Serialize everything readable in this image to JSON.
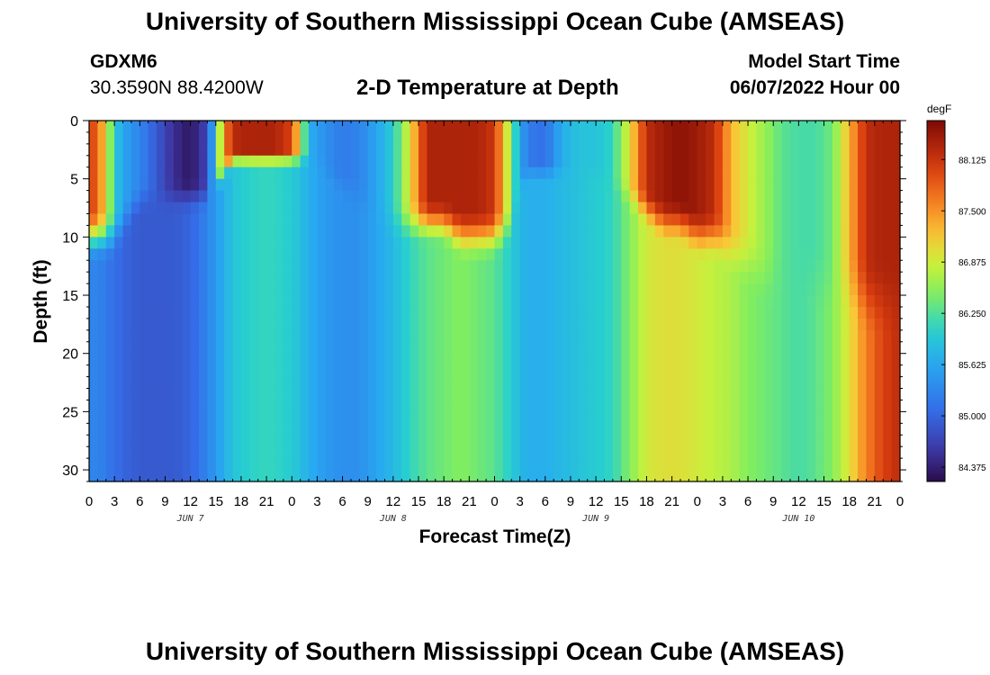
{
  "header": {
    "title": "University of Southern Mississippi Ocean Cube (AMSEAS)",
    "station_id": "GDXM6",
    "station_coords": "30.3590N  88.4200W",
    "subtitle": "2-D Temperature at Depth",
    "model_start_label": "Model Start Time",
    "model_start_value": "06/07/2022 Hour 00"
  },
  "footer": {
    "title": "University of Southern Mississippi Ocean Cube (AMSEAS)"
  },
  "chart_data": {
    "type": "heatmap",
    "title": "2-D Temperature at Depth",
    "xlabel": "Forecast Time(Z)",
    "ylabel": "Depth (ft)",
    "x_range_hours": [
      0,
      96
    ],
    "y_range_ft": [
      0,
      31
    ],
    "x_tick_step_hours": 3,
    "x_tick_labels": [
      "0",
      "3",
      "6",
      "9",
      "12",
      "15",
      "18",
      "21",
      "0",
      "3",
      "6",
      "9",
      "12",
      "15",
      "18",
      "21",
      "0",
      "3",
      "6",
      "9",
      "12",
      "15",
      "18",
      "21",
      "0",
      "3",
      "6",
      "9",
      "12",
      "15",
      "18",
      "21",
      "0"
    ],
    "day_labels": [
      {
        "label": "JUN 7",
        "hour": 12
      },
      {
        "label": "JUN 8",
        "hour": 36
      },
      {
        "label": "JUN 9",
        "hour": 60
      },
      {
        "label": "JUN 10",
        "hour": 84
      }
    ],
    "y_ticks": [
      0,
      5,
      10,
      15,
      20,
      25,
      30
    ],
    "colorbar": {
      "unit": "degF",
      "range": [
        84.2,
        88.6
      ],
      "tick_values": [
        84.375,
        85.0,
        85.625,
        86.25,
        86.875,
        87.5,
        88.125
      ],
      "tick_labels": [
        "84.375",
        "85.000",
        "85.625",
        "86.250",
        "86.875",
        "87.500",
        "88.125"
      ]
    },
    "temperature_profile": {
      "time_hours": [
        0,
        1,
        2,
        3,
        4,
        6,
        8,
        10,
        12,
        14,
        16,
        17,
        18,
        20,
        22,
        24,
        26,
        28,
        30,
        32,
        34,
        36,
        38,
        40,
        42,
        44,
        46,
        48,
        50,
        51,
        52,
        54,
        56,
        58,
        60,
        62,
        64,
        66,
        68,
        70,
        72,
        74,
        76,
        78,
        80,
        82,
        84,
        86,
        88,
        90,
        92,
        94,
        96
      ],
      "surface_degF": [
        88.0,
        87.8,
        87.0,
        86.0,
        85.6,
        85.3,
        84.9,
        84.5,
        84.3,
        84.7,
        87.5,
        88.2,
        88.3,
        88.3,
        88.3,
        88.0,
        85.7,
        85.4,
        85.2,
        85.3,
        85.6,
        86.0,
        87.0,
        88.3,
        88.3,
        88.3,
        88.3,
        88.1,
        86.5,
        85.6,
        85.2,
        85.1,
        85.7,
        85.9,
        85.9,
        86.1,
        87.0,
        88.2,
        88.4,
        88.5,
        88.4,
        88.2,
        87.3,
        86.9,
        86.6,
        86.3,
        86.2,
        86.2,
        86.4,
        87.3,
        88.2,
        88.3,
        88.3
      ],
      "bottom_degF": [
        85.3,
        85.3,
        85.2,
        85.1,
        85.0,
        84.9,
        84.9,
        84.9,
        85.0,
        85.3,
        85.7,
        85.9,
        86.0,
        86.1,
        86.1,
        86.0,
        85.7,
        85.5,
        85.4,
        85.4,
        85.6,
        85.8,
        86.1,
        86.3,
        86.4,
        86.5,
        86.4,
        86.3,
        86.0,
        85.8,
        85.7,
        85.7,
        85.8,
        85.9,
        86.0,
        86.1,
        86.5,
        86.9,
        87.0,
        87.0,
        86.9,
        86.8,
        86.7,
        86.5,
        86.4,
        86.3,
        86.2,
        86.3,
        86.5,
        87.0,
        87.6,
        88.0,
        88.2
      ],
      "thermocline_depth_ft": [
        9,
        9,
        9,
        9,
        8,
        6,
        6,
        6,
        6,
        6,
        4,
        3,
        3,
        3,
        3,
        3,
        3,
        4,
        5,
        6,
        7,
        8,
        8,
        8,
        8,
        9,
        9,
        9,
        8,
        5,
        4,
        4,
        4,
        4,
        4,
        5,
        6,
        7,
        8,
        8,
        9,
        9,
        10,
        11,
        12,
        12,
        12,
        12,
        13,
        13,
        14,
        14,
        14
      ]
    }
  }
}
